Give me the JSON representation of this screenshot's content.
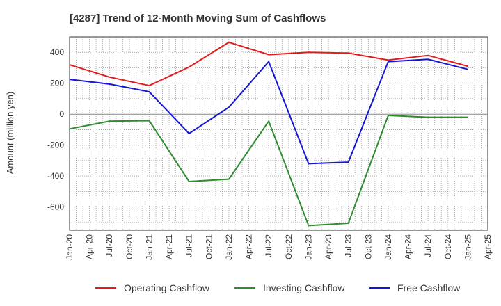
{
  "chart_data": {
    "type": "line",
    "title": "[4287]  Trend of 12-Month Moving Sum of Cashflows",
    "ylabel": "Amount (million yen)",
    "xlabel": "",
    "ylim": [
      -750,
      500
    ],
    "yticks": [
      400,
      200,
      0,
      -200,
      -400,
      -600
    ],
    "x_tick_labels": [
      "Jan-20",
      "Apr-20",
      "Jul-20",
      "Oct-20",
      "Jan-21",
      "Apr-21",
      "Jul-21",
      "Oct-21",
      "Jan-22",
      "Apr-22",
      "Jul-22",
      "Oct-22",
      "Jan-23",
      "Apr-23",
      "Jul-23",
      "Oct-23",
      "Jan-24",
      "Apr-24",
      "Jul-24",
      "Oct-24",
      "Jan-25",
      "Apr-25"
    ],
    "x": [
      "Jan-20",
      "Jul-20",
      "Jan-21",
      "Jul-21",
      "Jan-22",
      "Jul-22",
      "Jan-23",
      "Jul-23",
      "Jan-24",
      "Jul-24",
      "Jan-25"
    ],
    "grid": true,
    "legend_position": "bottom",
    "series": [
      {
        "name": "Operating Cashflow",
        "color": "#e31a1c",
        "values": [
          320,
          240,
          185,
          305,
          465,
          385,
          400,
          395,
          350,
          380,
          310
        ]
      },
      {
        "name": "Investing Cashflow",
        "color": "#2e8b2e",
        "values": [
          -95,
          -45,
          -42,
          -435,
          -420,
          -45,
          -720,
          -705,
          -8,
          -20,
          -20
        ]
      },
      {
        "name": "Free Cashflow",
        "color": "#1515d6",
        "values": [
          225,
          195,
          145,
          -125,
          45,
          340,
          -320,
          -310,
          340,
          355,
          290
        ]
      }
    ]
  }
}
